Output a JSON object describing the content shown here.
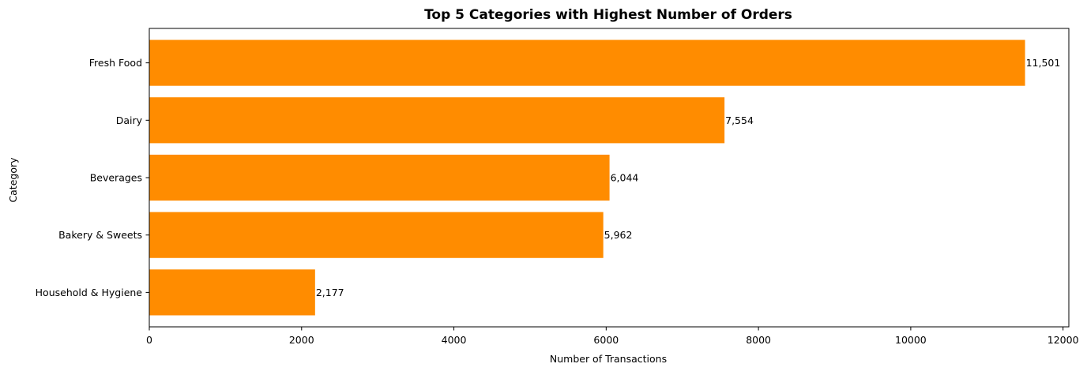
{
  "chart_data": {
    "type": "bar",
    "orientation": "horizontal",
    "title": "Top 5 Categories with Highest Number of Orders",
    "xlabel": "Number of Transactions",
    "ylabel": "Category",
    "categories": [
      "Fresh Food",
      "Dairy",
      "Beverages",
      "Bakery & Sweets",
      "Household & Hygiene"
    ],
    "values": [
      11501,
      7554,
      6044,
      5962,
      2177
    ],
    "value_labels": [
      "11,501",
      "7,554",
      "6,044",
      "5,962",
      "2,177"
    ],
    "xticks": [
      0,
      2000,
      4000,
      6000,
      8000,
      10000,
      12000
    ],
    "xtick_labels": [
      "0",
      "2000",
      "4000",
      "6000",
      "8000",
      "10000",
      "12000"
    ],
    "xlim": [
      0,
      12076
    ],
    "grid": false,
    "legend": "none",
    "bar_color": "#ff8c00"
  }
}
